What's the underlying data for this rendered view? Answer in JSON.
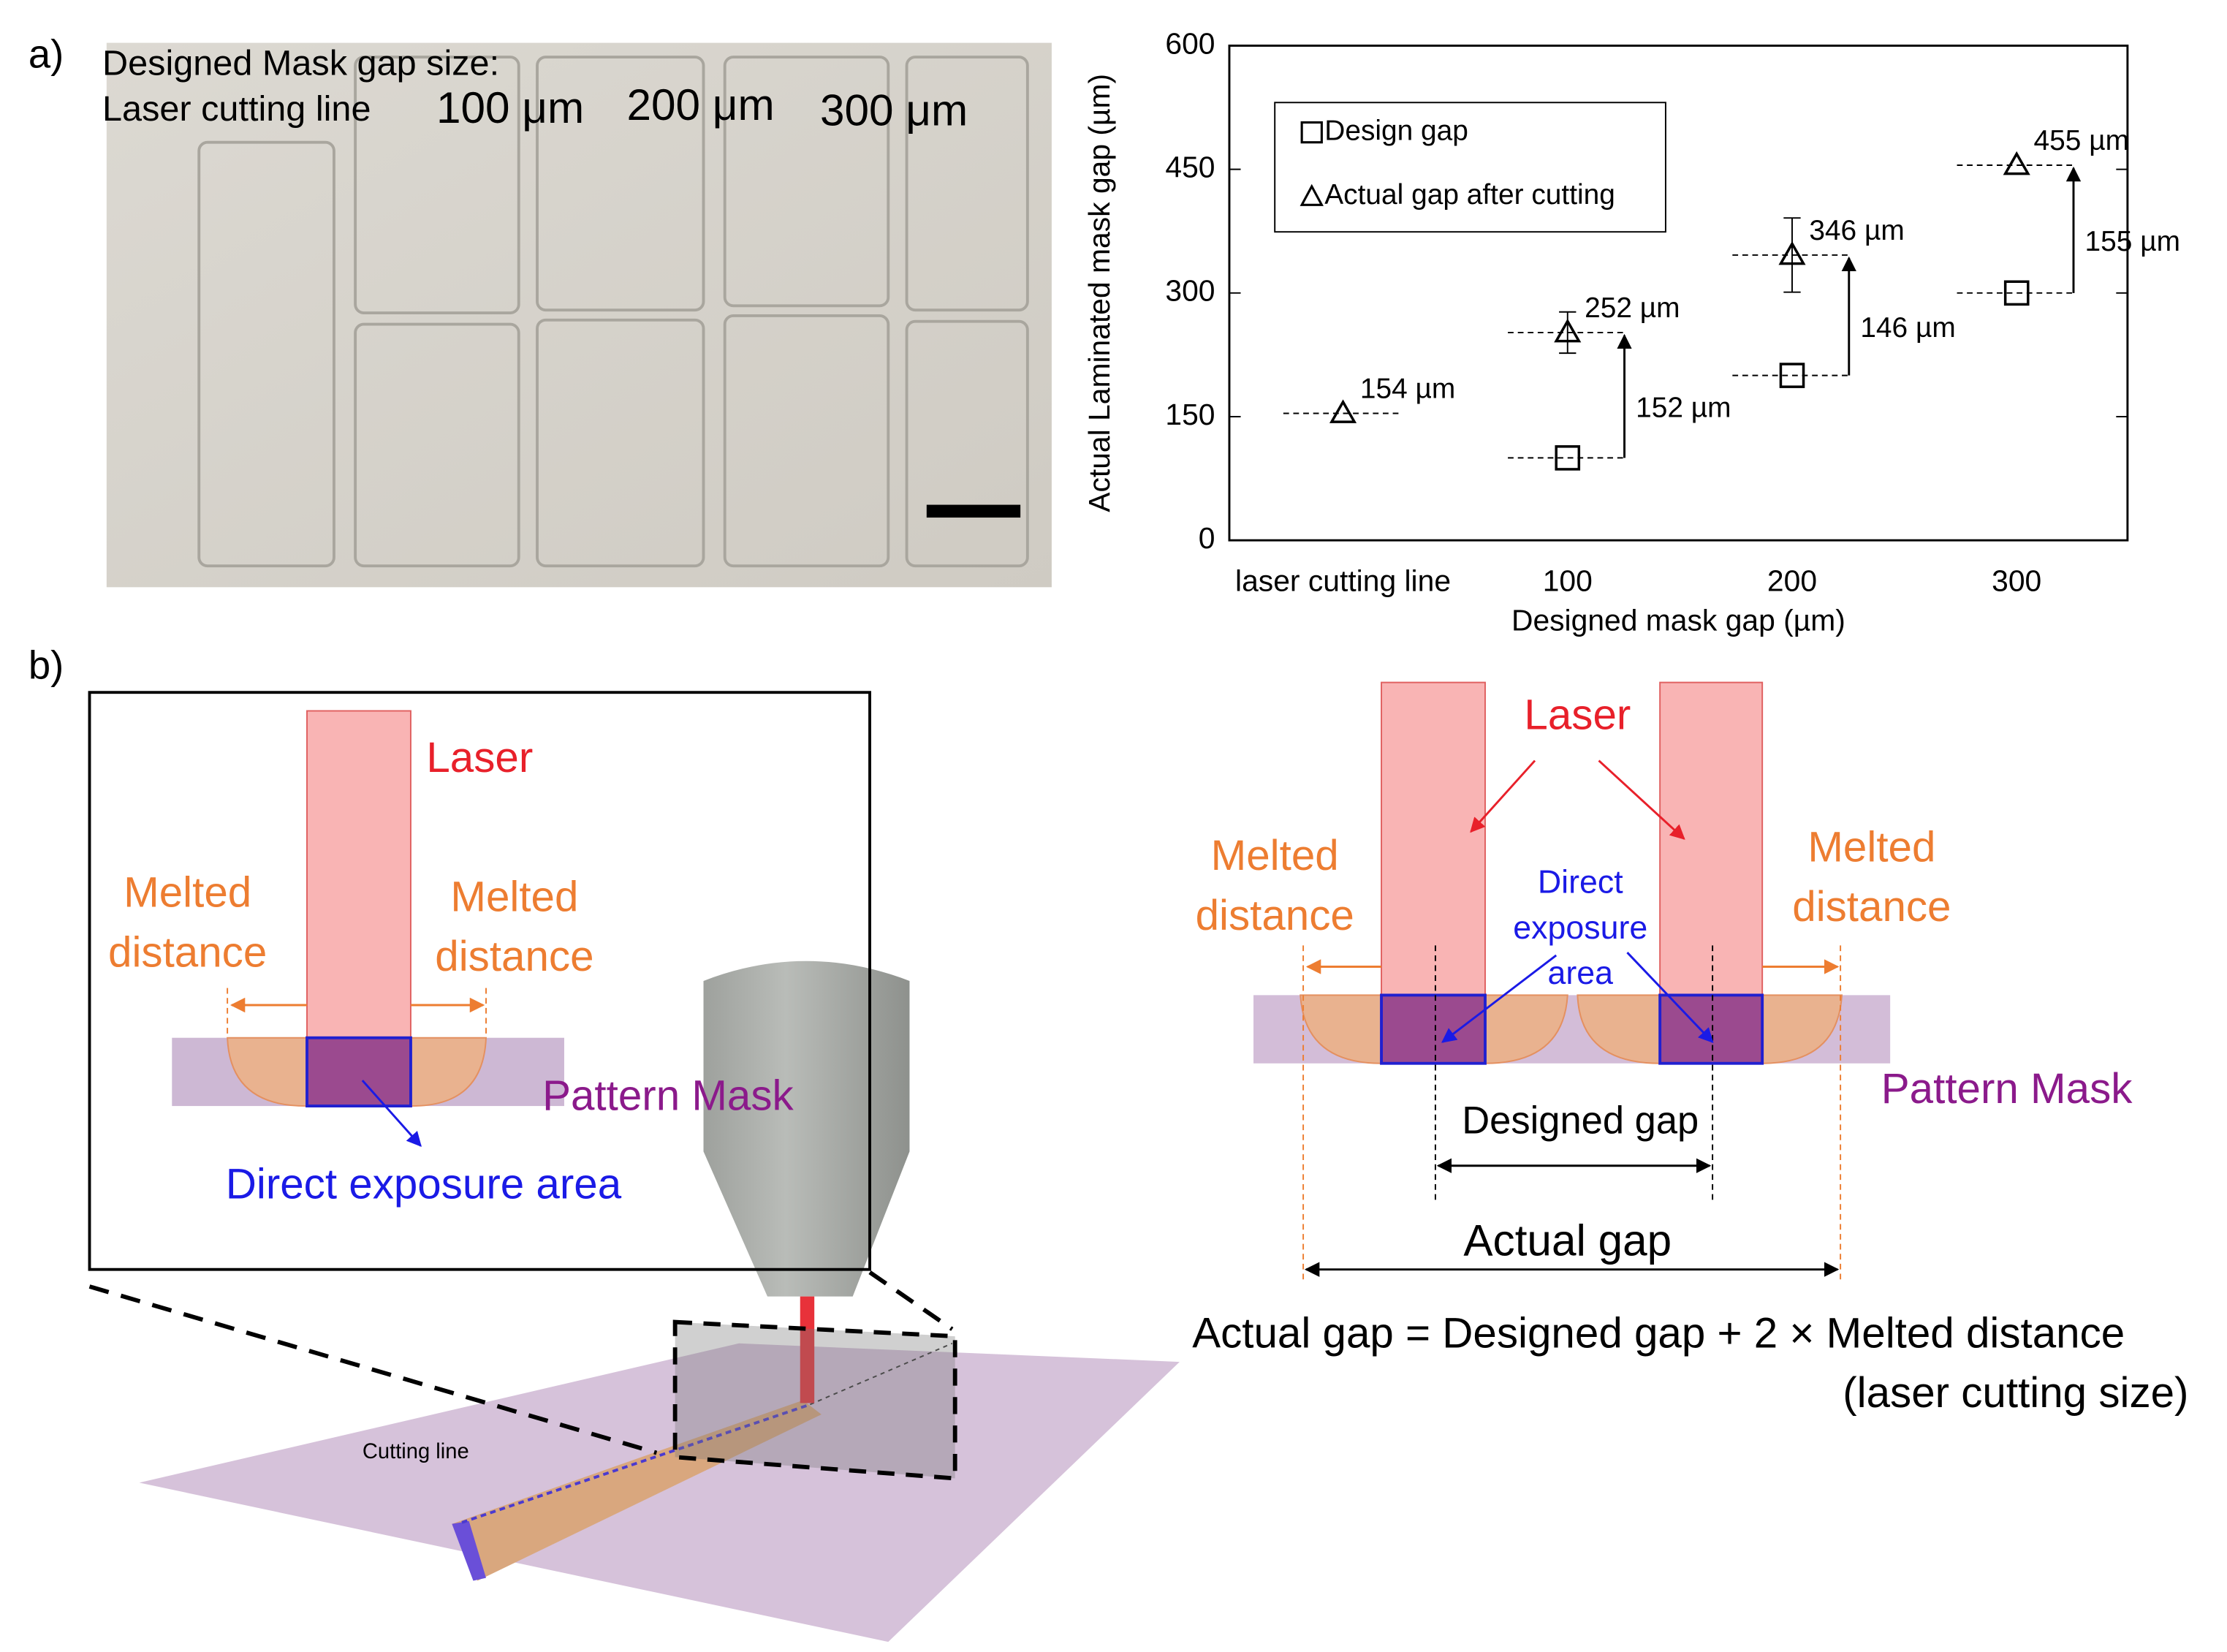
{
  "panel_a": {
    "label": "a)",
    "photo_title": "Designed Mask gap size:",
    "photo_labels": [
      "Laser cutting line",
      "100 μm",
      "200 μm",
      "300 μm"
    ]
  },
  "chart_data": {
    "type": "scatter",
    "categories": [
      "laser cutting line",
      "100",
      "200",
      "300"
    ],
    "series": [
      {
        "name": "Design gap",
        "color": "#000000",
        "marker": "square",
        "values": [
          null,
          100,
          200,
          300
        ]
      },
      {
        "name": "Actual gap after cutting",
        "color": "#000000",
        "marker": "triangle",
        "values": [
          154,
          252,
          346,
          455
        ],
        "errors": [
          null,
          25,
          45,
          null
        ],
        "value_labels": [
          "154 µm",
          "252 µm",
          "346 µm",
          "455 µm"
        ]
      }
    ],
    "difference_labels": [
      null,
      "152 µm",
      "146 µm",
      "155 µm"
    ],
    "ylim": [
      0,
      600
    ],
    "yticks": [
      0,
      150,
      300,
      450,
      600
    ],
    "xlabel": "Designed mask gap (µm)",
    "ylabel": "Actual Laminated mask gap (µm)",
    "legend": "upper left"
  },
  "panel_b": {
    "label": "b)",
    "inset": {
      "laser": "Laser",
      "melted_left": [
        "Melted",
        "distance"
      ],
      "melted_right": [
        "Melted",
        "distance"
      ],
      "mask": "Pattern Mask",
      "exposure": "Direct exposure area"
    },
    "cutting_line": "Cutting line",
    "detail": {
      "laser": "Laser",
      "melted_left": [
        "Melted",
        "distance"
      ],
      "melted_right": [
        "Melted",
        "distance"
      ],
      "exposure": [
        "Direct",
        "exposure",
        "area"
      ],
      "mask": "Pattern Mask",
      "designed_gap": "Designed gap",
      "actual_gap": "Actual gap"
    },
    "formula": [
      "Actual gap = Designed gap + 2 × Melted distance",
      "(laser cutting size)"
    ]
  }
}
